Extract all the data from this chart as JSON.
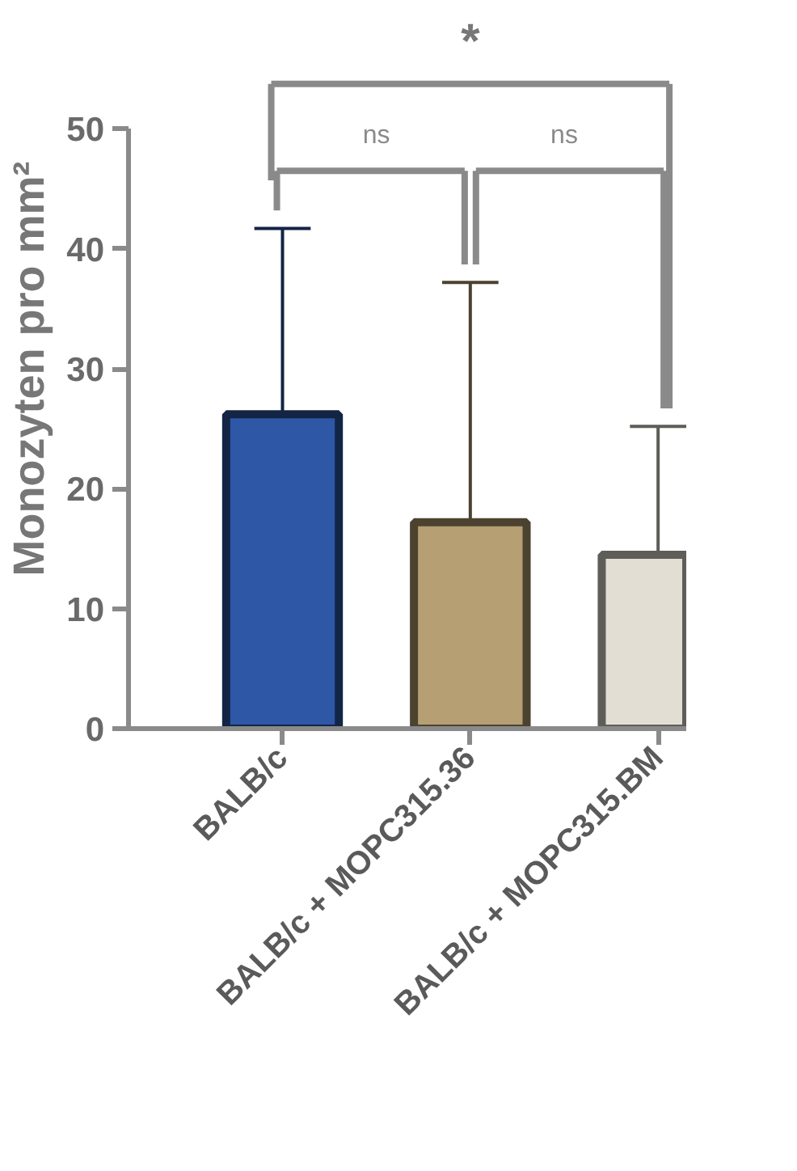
{
  "chart_data": {
    "type": "bar",
    "ylabel": "Monozyten pro mm²",
    "categories": [
      "BALB/c",
      "BALB/c + MOPC315.36",
      "BALB/c + MOPC315.BM"
    ],
    "values": [
      26.2,
      17.2,
      14.5
    ],
    "colors": [
      "#2e57a6",
      "#b59f73",
      "#e3ded3"
    ],
    "errors": [
      [
        26.2,
        41.7
      ],
      [
        17.2,
        37.2
      ],
      [
        14.5,
        25.2
      ]
    ],
    "ylim": [
      0,
      50
    ],
    "yticks": [
      0,
      10,
      20,
      30,
      40,
      50
    ],
    "grid": false,
    "annotations": [
      "ns",
      "ns",
      "*"
    ]
  }
}
